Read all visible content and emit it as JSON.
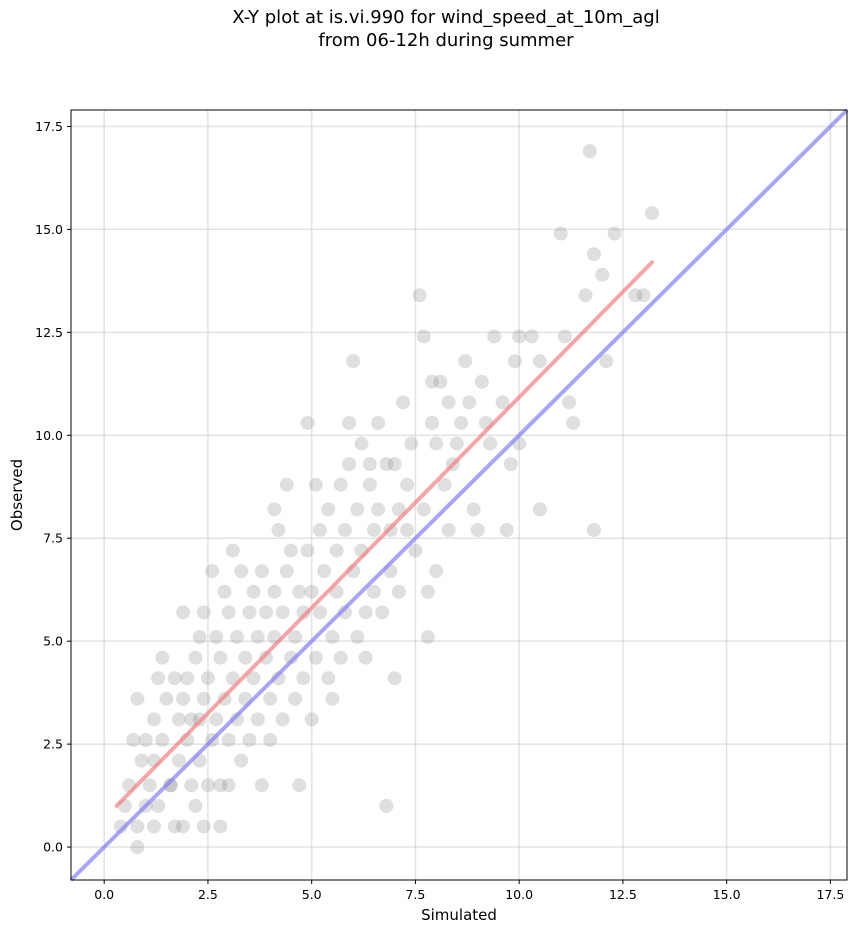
{
  "chart_data": {
    "type": "scatter",
    "title_lines": [
      "X-Y plot at is.vi.990 for wind_speed_at_10m_agl",
      "from 06-12h during summer"
    ],
    "xlabel": "Simulated",
    "ylabel": "Observed",
    "xlim": [
      -0.8,
      17.9
    ],
    "ylim": [
      -0.8,
      17.9
    ],
    "xticks": [
      0.0,
      2.5,
      5.0,
      7.5,
      10.0,
      12.5,
      15.0,
      17.5
    ],
    "yticks": [
      0.0,
      2.5,
      5.0,
      7.5,
      10.0,
      12.5,
      15.0,
      17.5
    ],
    "xtick_labels": [
      "0.0",
      "2.5",
      "5.0",
      "7.5",
      "10.0",
      "12.5",
      "15.0",
      "17.5"
    ],
    "ytick_labels": [
      "0.0",
      "2.5",
      "5.0",
      "7.5",
      "10.0",
      "12.5",
      "15.0",
      "17.5"
    ],
    "grid": true,
    "points": [
      [
        0.4,
        0.5
      ],
      [
        0.5,
        1.0
      ],
      [
        0.6,
        1.5
      ],
      [
        0.7,
        2.6
      ],
      [
        0.8,
        0.0
      ],
      [
        0.8,
        0.5
      ],
      [
        0.8,
        3.6
      ],
      [
        0.9,
        2.1
      ],
      [
        1.0,
        1.0
      ],
      [
        1.0,
        2.6
      ],
      [
        1.1,
        1.5
      ],
      [
        1.2,
        0.5
      ],
      [
        1.2,
        3.1
      ],
      [
        1.2,
        2.1
      ],
      [
        1.3,
        4.1
      ],
      [
        1.3,
        1.0
      ],
      [
        1.4,
        4.6
      ],
      [
        1.4,
        2.6
      ],
      [
        1.5,
        3.6
      ],
      [
        1.6,
        1.5
      ],
      [
        1.6,
        1.5
      ],
      [
        1.7,
        0.5
      ],
      [
        1.7,
        4.1
      ],
      [
        1.8,
        2.1
      ],
      [
        1.8,
        3.1
      ],
      [
        1.9,
        0.5
      ],
      [
        1.9,
        5.7
      ],
      [
        1.9,
        3.6
      ],
      [
        2.0,
        4.1
      ],
      [
        2.0,
        2.6
      ],
      [
        2.1,
        1.5
      ],
      [
        2.1,
        3.1
      ],
      [
        2.2,
        1.0
      ],
      [
        2.2,
        4.6
      ],
      [
        2.3,
        2.1
      ],
      [
        2.3,
        3.1
      ],
      [
        2.3,
        5.1
      ],
      [
        2.4,
        0.5
      ],
      [
        2.4,
        3.6
      ],
      [
        2.4,
        5.7
      ],
      [
        2.5,
        1.5
      ],
      [
        2.5,
        4.1
      ],
      [
        2.6,
        6.7
      ],
      [
        2.6,
        2.6
      ],
      [
        2.7,
        3.1
      ],
      [
        2.7,
        5.1
      ],
      [
        2.8,
        1.5
      ],
      [
        2.8,
        4.6
      ],
      [
        2.8,
        0.5
      ],
      [
        2.9,
        6.2
      ],
      [
        2.9,
        3.6
      ],
      [
        3.0,
        5.7
      ],
      [
        3.0,
        2.6
      ],
      [
        3.0,
        1.5
      ],
      [
        3.1,
        4.1
      ],
      [
        3.1,
        7.2
      ],
      [
        3.2,
        3.1
      ],
      [
        3.2,
        5.1
      ],
      [
        3.3,
        2.1
      ],
      [
        3.3,
        6.7
      ],
      [
        3.4,
        4.6
      ],
      [
        3.4,
        3.6
      ],
      [
        3.5,
        5.7
      ],
      [
        3.5,
        2.6
      ],
      [
        3.6,
        4.1
      ],
      [
        3.6,
        6.2
      ],
      [
        3.7,
        5.1
      ],
      [
        3.7,
        3.1
      ],
      [
        3.8,
        6.7
      ],
      [
        3.8,
        1.5
      ],
      [
        3.9,
        4.6
      ],
      [
        3.9,
        5.7
      ],
      [
        4.0,
        3.6
      ],
      [
        4.0,
        2.6
      ],
      [
        4.1,
        5.1
      ],
      [
        4.1,
        6.2
      ],
      [
        4.1,
        8.2
      ],
      [
        4.2,
        4.1
      ],
      [
        4.2,
        7.7
      ],
      [
        4.3,
        5.7
      ],
      [
        4.3,
        3.1
      ],
      [
        4.4,
        6.7
      ],
      [
        4.4,
        8.8
      ],
      [
        4.5,
        4.6
      ],
      [
        4.5,
        7.2
      ],
      [
        4.6,
        5.1
      ],
      [
        4.6,
        3.6
      ],
      [
        4.7,
        6.2
      ],
      [
        4.7,
        1.5
      ],
      [
        4.8,
        5.7
      ],
      [
        4.8,
        4.1
      ],
      [
        4.9,
        7.2
      ],
      [
        4.9,
        10.3
      ],
      [
        5.0,
        6.2
      ],
      [
        5.0,
        3.1
      ],
      [
        5.1,
        4.6
      ],
      [
        5.1,
        8.8
      ],
      [
        5.2,
        5.7
      ],
      [
        5.2,
        7.7
      ],
      [
        5.3,
        6.7
      ],
      [
        5.4,
        4.1
      ],
      [
        5.4,
        8.2
      ],
      [
        5.5,
        3.6
      ],
      [
        5.5,
        5.1
      ],
      [
        5.6,
        6.2
      ],
      [
        5.6,
        7.2
      ],
      [
        5.7,
        8.8
      ],
      [
        5.7,
        4.6
      ],
      [
        5.8,
        7.7
      ],
      [
        5.8,
        5.7
      ],
      [
        5.9,
        9.3
      ],
      [
        5.9,
        10.3
      ],
      [
        6.0,
        6.7
      ],
      [
        6.0,
        11.8
      ],
      [
        6.1,
        5.1
      ],
      [
        6.1,
        8.2
      ],
      [
        6.2,
        7.2
      ],
      [
        6.2,
        9.8
      ],
      [
        6.3,
        4.6
      ],
      [
        6.3,
        5.7
      ],
      [
        6.4,
        8.8
      ],
      [
        6.4,
        9.3
      ],
      [
        6.5,
        6.2
      ],
      [
        6.5,
        7.7
      ],
      [
        6.6,
        8.2
      ],
      [
        6.6,
        10.3
      ],
      [
        6.7,
        5.7
      ],
      [
        6.8,
        9.3
      ],
      [
        6.8,
        1.0
      ],
      [
        6.9,
        6.7
      ],
      [
        6.9,
        7.7
      ],
      [
        7.0,
        9.3
      ],
      [
        7.0,
        4.1
      ],
      [
        7.1,
        8.2
      ],
      [
        7.1,
        6.2
      ],
      [
        7.2,
        10.8
      ],
      [
        7.3,
        7.7
      ],
      [
        7.3,
        8.8
      ],
      [
        7.4,
        9.8
      ],
      [
        7.5,
        7.2
      ],
      [
        7.6,
        13.4
      ],
      [
        7.7,
        12.4
      ],
      [
        7.7,
        8.2
      ],
      [
        7.8,
        6.2
      ],
      [
        7.8,
        5.1
      ],
      [
        7.9,
        11.3
      ],
      [
        7.9,
        10.3
      ],
      [
        8.0,
        9.8
      ],
      [
        8.0,
        6.7
      ],
      [
        8.1,
        11.3
      ],
      [
        8.2,
        8.8
      ],
      [
        8.3,
        10.8
      ],
      [
        8.3,
        7.7
      ],
      [
        8.4,
        9.3
      ],
      [
        8.5,
        9.8
      ],
      [
        8.6,
        10.3
      ],
      [
        8.7,
        11.8
      ],
      [
        8.8,
        10.8
      ],
      [
        8.9,
        8.2
      ],
      [
        9.0,
        7.7
      ],
      [
        9.1,
        11.3
      ],
      [
        9.2,
        10.3
      ],
      [
        9.3,
        9.8
      ],
      [
        9.4,
        12.4
      ],
      [
        9.6,
        10.8
      ],
      [
        9.7,
        7.7
      ],
      [
        9.8,
        9.3
      ],
      [
        9.9,
        11.8
      ],
      [
        10.0,
        12.4
      ],
      [
        10.0,
        9.8
      ],
      [
        10.3,
        12.4
      ],
      [
        10.5,
        11.8
      ],
      [
        10.5,
        8.2
      ],
      [
        11.0,
        14.9
      ],
      [
        11.1,
        12.4
      ],
      [
        11.2,
        10.8
      ],
      [
        11.3,
        10.3
      ],
      [
        11.6,
        13.4
      ],
      [
        11.7,
        16.9
      ],
      [
        11.8,
        14.4
      ],
      [
        11.8,
        7.7
      ],
      [
        12.0,
        13.9
      ],
      [
        12.1,
        11.8
      ],
      [
        12.3,
        14.9
      ],
      [
        12.8,
        13.4
      ],
      [
        13.0,
        13.4
      ],
      [
        13.2,
        15.4
      ]
    ],
    "point_color": "#808080",
    "fit_line": {
      "color": "#f08080",
      "x": [
        0.3,
        13.2
      ],
      "y": [
        1.0,
        14.2
      ]
    },
    "identity_line": {
      "color": "#8080f0",
      "x": [
        -0.8,
        17.9
      ],
      "y": [
        -0.8,
        17.9
      ]
    }
  }
}
